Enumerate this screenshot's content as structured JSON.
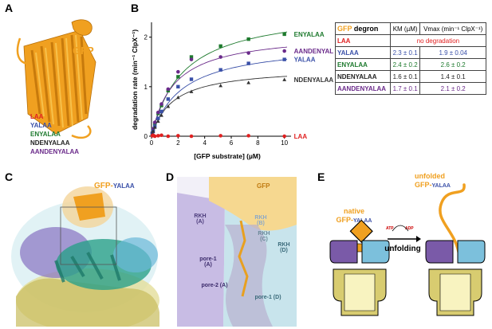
{
  "panels": {
    "a": {
      "label": "A",
      "gfp": "GFP",
      "tags": [
        "LAA",
        "YALAA",
        "ENYALAA",
        "NDENYALAA",
        "AANDENYALAA"
      ]
    },
    "b": {
      "label": "B"
    },
    "c": {
      "label": "C",
      "gfp_prefix": "GFP-",
      "gfp_suffix": "YALAA"
    },
    "d": {
      "label": "D",
      "gfp": "GFP",
      "labels": [
        "RKH (A)",
        "RKH (B)",
        "RKH (C)",
        "RKH (D)",
        "pore-1 (A)",
        "pore-2 (A)",
        "pore-1 (D)"
      ]
    },
    "e": {
      "label": "E",
      "native_1": "native",
      "native_2_prefix": "GFP-",
      "native_2_suffix": "YALAA",
      "unfolded_1": "unfolded",
      "unfolded_2_prefix": "GFP-",
      "unfolded_2_suffix": "YALAA",
      "atp": "ATP",
      "adp": "ADP",
      "unfolding": "unfolding"
    }
  },
  "table": {
    "header_degron_a": "GFP",
    "header_degron_b": " degron",
    "header_km": "KM (µM)",
    "header_vmax": "Vmax (min⁻¹ ClpX⁻¹)",
    "rows": [
      {
        "name": "LAA",
        "span": "no degradation",
        "color": "#e02020"
      },
      {
        "name": "YALAA",
        "km": "2.3 ± 0.1",
        "vmax": "1.9 ± 0.04",
        "color": "#3a50a8"
      },
      {
        "name": "ENYALAA",
        "km": "2.4 ± 0.2",
        "vmax": "2.6 ± 0.2",
        "color": "#1e7a2e"
      },
      {
        "name": "NDENYALAA",
        "km": "1.6 ± 0.1",
        "vmax": "1.4 ± 0.1",
        "color": "#222222"
      },
      {
        "name": "AANDENYALAA",
        "km": "1.7 ± 0.1",
        "vmax": "2.1 ± 0.2",
        "color": "#6a2a8a"
      }
    ]
  },
  "chart_data": {
    "type": "scatter",
    "xlabel": "[GFP substrate] (µM)",
    "ylabel": "degradation rate (min⁻¹ ClpX⁻¹)",
    "xlim": [
      0,
      10.5
    ],
    "ylim": [
      0,
      2.3
    ],
    "xticks": [
      0,
      2,
      4,
      6,
      8,
      10
    ],
    "yticks": [
      0,
      1,
      2
    ],
    "x": [
      0.06,
      0.12,
      0.25,
      0.5,
      0.75,
      1.25,
      2,
      3,
      5.2,
      7.3,
      10
    ],
    "series": [
      {
        "name": "ENYALAA",
        "color": "#1e7a2e",
        "marker": "square",
        "km": 2.4,
        "vmax": 2.6,
        "values": [
          0.06,
          0.14,
          0.26,
          0.46,
          0.62,
          0.92,
          1.2,
          1.6,
          1.82,
          1.96,
          2.06
        ]
      },
      {
        "name": "AANDENYALAA",
        "color": "#6a2a8a",
        "marker": "circle",
        "km": 1.7,
        "vmax": 2.1,
        "values": [
          0.07,
          0.15,
          0.28,
          0.48,
          0.65,
          0.95,
          1.3,
          1.55,
          1.6,
          1.68,
          1.72
        ]
      },
      {
        "name": "YALAA",
        "color": "#3a50a8",
        "marker": "square",
        "km": 2.3,
        "vmax": 1.9,
        "values": [
          0.05,
          0.1,
          0.2,
          0.36,
          0.5,
          0.75,
          1.0,
          1.15,
          1.34,
          1.47,
          1.55
        ]
      },
      {
        "name": "NDENYALAA",
        "color": "#333333",
        "marker": "triangle",
        "km": 1.6,
        "vmax": 1.4,
        "values": [
          0.04,
          0.1,
          0.18,
          0.3,
          0.42,
          0.6,
          0.78,
          0.9,
          1.02,
          1.08,
          1.14
        ]
      },
      {
        "name": "LAA",
        "color": "#e02020",
        "marker": "circle",
        "values": [
          0.01,
          0.02,
          0.0,
          0.01,
          0.02,
          0.0,
          0.01,
          0.0,
          0.01,
          0.01,
          0.0
        ]
      }
    ]
  },
  "colors": {
    "gfp": "#f0a020",
    "purple": "#7a5aa8",
    "cyan": "#7cc0dc",
    "teal": "#2aa08a",
    "olive": "#d8cc70",
    "pale": "#f8f3c0"
  }
}
